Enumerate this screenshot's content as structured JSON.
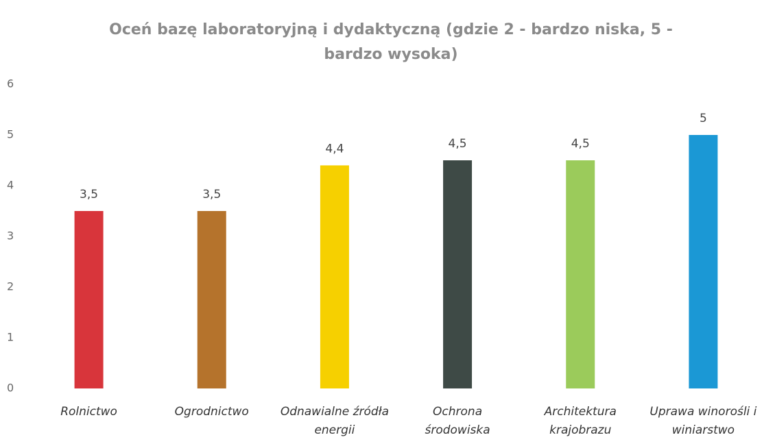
{
  "chart_data": {
    "type": "bar",
    "title": "Oceń bazę laboratoryjną i dydaktyczną (gdzie 2 - bardzo niska, 5 - bardzo wysoka)",
    "categories": [
      "Rolnictwo",
      "Ogrodnictwo",
      "Odnawialne źródła energii",
      "Ochrona środowiska",
      "Architektura krajobrazu",
      "Uprawa winorośli i winiarstwo"
    ],
    "values": [
      3.5,
      3.5,
      4.4,
      4.5,
      4.5,
      5
    ],
    "value_labels": [
      "3,5",
      "3,5",
      "4,4",
      "4,5",
      "4,5",
      "5"
    ],
    "colors": [
      "#d8353b",
      "#b5732c",
      "#f6d000",
      "#3e4a46",
      "#9bcb5b",
      "#1b98d5"
    ],
    "ylim": [
      0,
      6
    ],
    "yticks": [
      0,
      1,
      2,
      3,
      4,
      5,
      6
    ],
    "grid": false
  }
}
